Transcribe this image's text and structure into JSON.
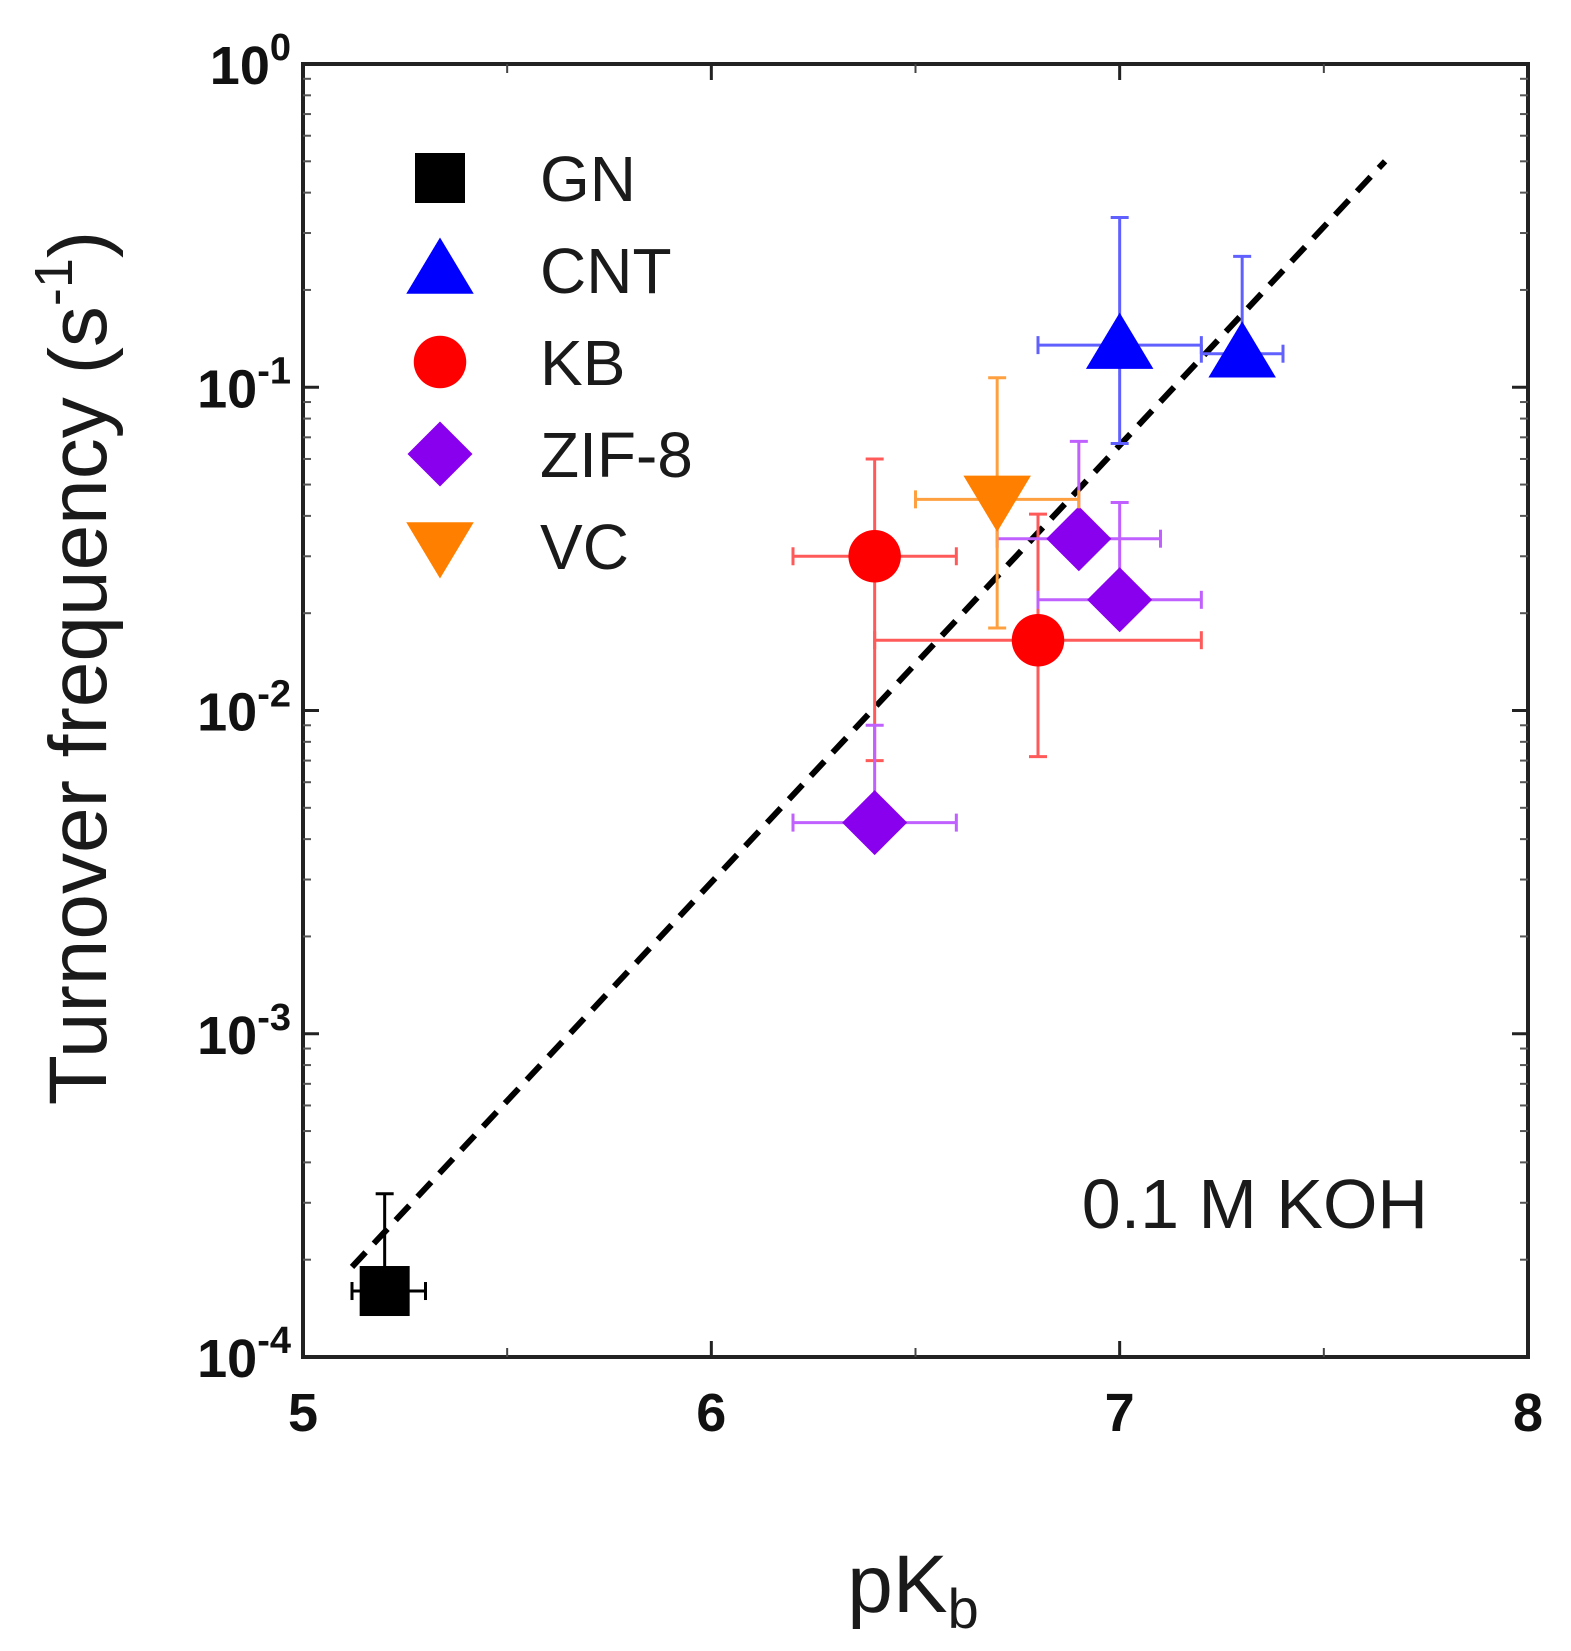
{
  "chart_data": {
    "type": "scatter",
    "xlabel": {
      "main": "pK",
      "sub": "b"
    },
    "ylabel": {
      "main": "Turnover frequency (s",
      "sup": "-1",
      "end": ")"
    },
    "x_scale": "linear",
    "y_scale": "log",
    "xlim": [
      5,
      8
    ],
    "ylim": [
      0.0001,
      1
    ],
    "x_ticks": [
      {
        "value": 5,
        "label": "5"
      },
      {
        "value": 6,
        "label": "6"
      },
      {
        "value": 7,
        "label": "7"
      },
      {
        "value": 8,
        "label": "8"
      }
    ],
    "y_ticks": [
      {
        "value": 0.0001,
        "base": "10",
        "exp": "-4"
      },
      {
        "value": 0.001,
        "base": "10",
        "exp": "-3"
      },
      {
        "value": 0.01,
        "base": "10",
        "exp": "-2"
      },
      {
        "value": 0.1,
        "base": "10",
        "exp": "-1"
      },
      {
        "value": 1,
        "base": "10",
        "exp": "0"
      }
    ],
    "legend_position": "top-left",
    "annotation": "0.1 M KOH",
    "series": [
      {
        "name": "GN",
        "marker": "square",
        "color": "#000000",
        "errcolor": "#000000",
        "points": [
          {
            "x": 5.2,
            "y": 0.00016,
            "xerr": [
              0.08,
              0.1
            ],
            "yerr": [
              0.00016,
              0.00016
            ]
          }
        ]
      },
      {
        "name": "CNT",
        "marker": "triangle-up",
        "color": "#0000ff",
        "errcolor": "#6060ff",
        "points": [
          {
            "x": 7.0,
            "y": 0.135,
            "xerr": [
              0.2,
              0.2
            ],
            "yerr": [
              0.068,
              0.2
            ]
          },
          {
            "x": 7.3,
            "y": 0.127,
            "xerr": [
              0.1,
              0.1
            ],
            "yerr": [
              0.127,
              0.127
            ]
          }
        ]
      },
      {
        "name": "KB",
        "marker": "circle",
        "color": "#ff0000",
        "errcolor": "#ff5a5a",
        "points": [
          {
            "x": 6.4,
            "y": 0.03,
            "xerr": [
              0.2,
              0.2
            ],
            "yerr": [
              0.023,
              0.03
            ]
          },
          {
            "x": 6.8,
            "y": 0.0165,
            "xerr": [
              0.4,
              0.4
            ],
            "yerr": [
              0.0093,
              0.024
            ]
          }
        ]
      },
      {
        "name": "ZIF-8",
        "marker": "diamond",
        "color": "#8800ee",
        "errcolor": "#c060ff",
        "points": [
          {
            "x": 6.9,
            "y": 0.034,
            "xerr": [
              0.2,
              0.2
            ],
            "yerr": [
              0.034,
              0.034
            ]
          },
          {
            "x": 7.0,
            "y": 0.022,
            "xerr": [
              0.2,
              0.2
            ],
            "yerr": [
              0.022,
              0.022
            ]
          },
          {
            "x": 6.4,
            "y": 0.0045,
            "xerr": [
              0.2,
              0.2
            ],
            "yerr": [
              0.0045,
              0.0045
            ]
          }
        ]
      },
      {
        "name": "VC",
        "marker": "triangle-down",
        "color": "#ff8000",
        "errcolor": "#ffa040",
        "points": [
          {
            "x": 6.7,
            "y": 0.045,
            "xerr": [
              0.2,
              0.2
            ],
            "yerr": [
              0.027,
              0.062
            ]
          }
        ]
      }
    ],
    "fit_line": {
      "style": "dashed",
      "color": "#000000",
      "x": [
        5.12,
        7.65
      ],
      "y": [
        0.00019,
        0.5
      ]
    }
  }
}
